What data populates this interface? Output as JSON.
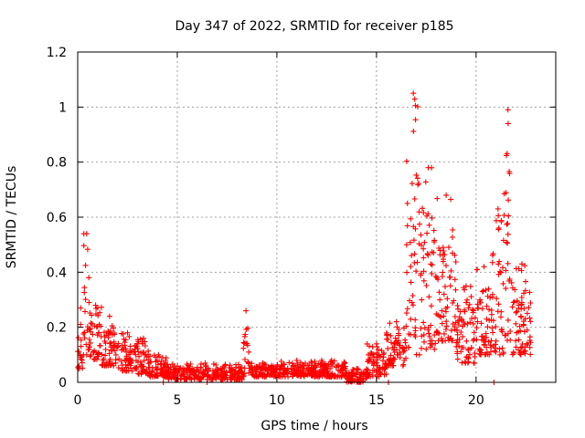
{
  "chart_data": {
    "type": "scatter",
    "title": "Day 347 of 2022, SRMTID for receiver p185",
    "xlabel": "GPS time / hours",
    "ylabel": "SRMTID / TECUs",
    "xlim": [
      0,
      24
    ],
    "ylim": [
      0,
      1.2
    ],
    "xticks": [
      0,
      5,
      10,
      15,
      20
    ],
    "xtick_labels": [
      "0",
      "5",
      "10",
      "15",
      "20"
    ],
    "yticks": [
      0,
      0.2,
      0.4,
      0.6,
      0.8,
      1.0,
      1.2
    ],
    "ytick_labels": [
      "0",
      "0.2",
      "0.4",
      "0.6",
      "0.8",
      "1",
      "1.2"
    ],
    "grid": true,
    "marker": "+",
    "color": "#ff0000",
    "series": [
      {
        "name": "SRMTID",
        "envelope": [
          {
            "x0": 0.0,
            "x1": 0.3,
            "min": 0.05,
            "max": 0.27
          },
          {
            "x0": 0.3,
            "x1": 0.6,
            "min": 0.1,
            "max": 0.54
          },
          {
            "x0": 0.6,
            "x1": 1.2,
            "min": 0.08,
            "max": 0.28
          },
          {
            "x0": 1.2,
            "x1": 2.0,
            "min": 0.06,
            "max": 0.24
          },
          {
            "x0": 2.0,
            "x1": 3.0,
            "min": 0.04,
            "max": 0.18
          },
          {
            "x0": 3.0,
            "x1": 3.6,
            "min": 0.03,
            "max": 0.16
          },
          {
            "x0": 3.6,
            "x1": 4.5,
            "min": 0.02,
            "max": 0.1
          },
          {
            "x0": 4.5,
            "x1": 8.3,
            "min": 0.01,
            "max": 0.07
          },
          {
            "x0": 8.3,
            "x1": 8.6,
            "min": 0.02,
            "max": 0.26
          },
          {
            "x0": 8.6,
            "x1": 10.0,
            "min": 0.02,
            "max": 0.07
          },
          {
            "x0": 10.0,
            "x1": 12.0,
            "min": 0.02,
            "max": 0.08
          },
          {
            "x0": 12.0,
            "x1": 13.5,
            "min": 0.02,
            "max": 0.08
          },
          {
            "x0": 13.5,
            "x1": 14.5,
            "min": 0.0,
            "max": 0.05
          },
          {
            "x0": 14.5,
            "x1": 15.5,
            "min": 0.02,
            "max": 0.14
          },
          {
            "x0": 15.5,
            "x1": 16.5,
            "min": 0.06,
            "max": 0.22
          },
          {
            "x0": 16.5,
            "x1": 17.2,
            "min": 0.1,
            "max": 1.05
          },
          {
            "x0": 17.2,
            "x1": 18.0,
            "min": 0.12,
            "max": 0.78
          },
          {
            "x0": 18.0,
            "x1": 19.0,
            "min": 0.15,
            "max": 0.68
          },
          {
            "x0": 19.0,
            "x1": 20.0,
            "min": 0.07,
            "max": 0.35
          },
          {
            "x0": 20.0,
            "x1": 20.8,
            "min": 0.1,
            "max": 0.42
          },
          {
            "x0": 20.8,
            "x1": 21.4,
            "min": 0.1,
            "max": 0.63
          },
          {
            "x0": 21.4,
            "x1": 21.8,
            "min": 0.15,
            "max": 0.99
          },
          {
            "x0": 21.8,
            "x1": 22.8,
            "min": 0.1,
            "max": 0.43
          }
        ],
        "outliers": [
          {
            "x": 4.3,
            "y": 0.0
          },
          {
            "x": 6.5,
            "y": 0.0
          },
          {
            "x": 15.6,
            "y": 0.0
          },
          {
            "x": 20.9,
            "y": 0.0
          }
        ]
      }
    ]
  }
}
